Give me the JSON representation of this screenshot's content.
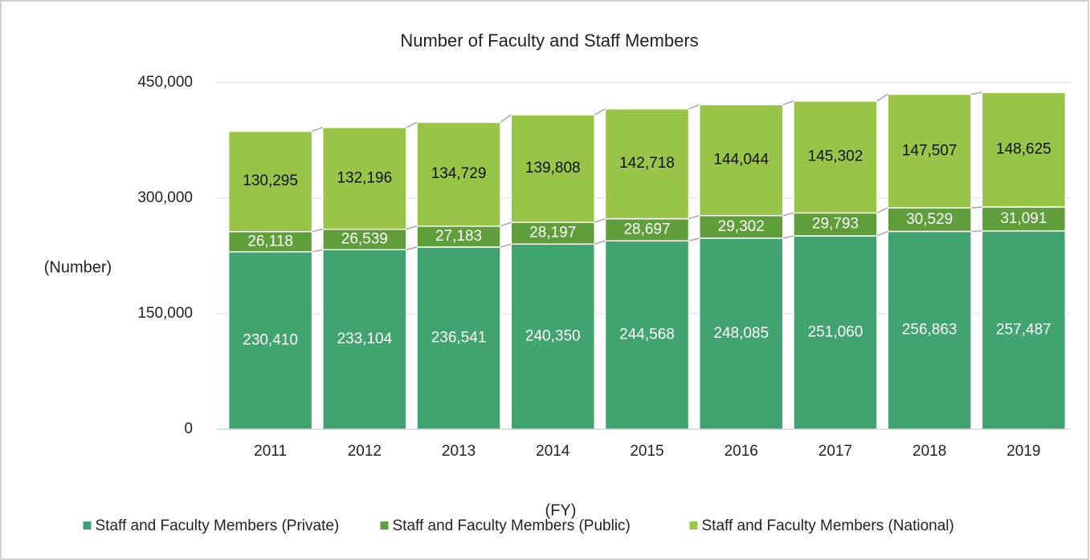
{
  "chart_data": {
    "type": "stacked_bar",
    "title": "Number of Faculty and Staff Members",
    "y_label": "(Number)",
    "x_label": "(FY)",
    "categories": [
      "2011",
      "2012",
      "2013",
      "2014",
      "2015",
      "2016",
      "2017",
      "2018",
      "2019"
    ],
    "series": [
      {
        "name": "Staff and Faculty Members (Private)",
        "color": "#41a36f",
        "values": [
          230410,
          233104,
          236541,
          240350,
          244568,
          248085,
          251060,
          256863,
          257487
        ],
        "value_labels": [
          "230,410",
          "233,104",
          "236,541",
          "240,350",
          "244,568",
          "248,085",
          "251,060",
          "256,863",
          "257,487"
        ]
      },
      {
        "name": "Staff and Faculty Members (Public)",
        "color": "#5f9e3a",
        "values": [
          26118,
          26539,
          27183,
          28197,
          28697,
          29302,
          29793,
          30529,
          31091
        ],
        "value_labels": [
          "26,118",
          "26,539",
          "27,183",
          "28,197",
          "28,697",
          "29,302",
          "29,793",
          "30,529",
          "31,091"
        ]
      },
      {
        "name": "Staff and Faculty Members (National)",
        "color": "#98c447",
        "values": [
          130295,
          132196,
          134729,
          139808,
          142718,
          144044,
          145302,
          147507,
          148625
        ],
        "value_labels": [
          "130,295",
          "132,196",
          "134,729",
          "139,808",
          "142,718",
          "144,044",
          "145,302",
          "147,507",
          "148,625"
        ]
      }
    ],
    "ylim": [
      0,
      450000
    ],
    "yticks": [
      0,
      {
        "value": 150000,
        "label": "150,000"
      },
      {
        "value": 300000,
        "label": "300,000"
      },
      {
        "value": 450000,
        "label": "450,000"
      }
    ],
    "grid": true,
    "legend": "bottom"
  }
}
